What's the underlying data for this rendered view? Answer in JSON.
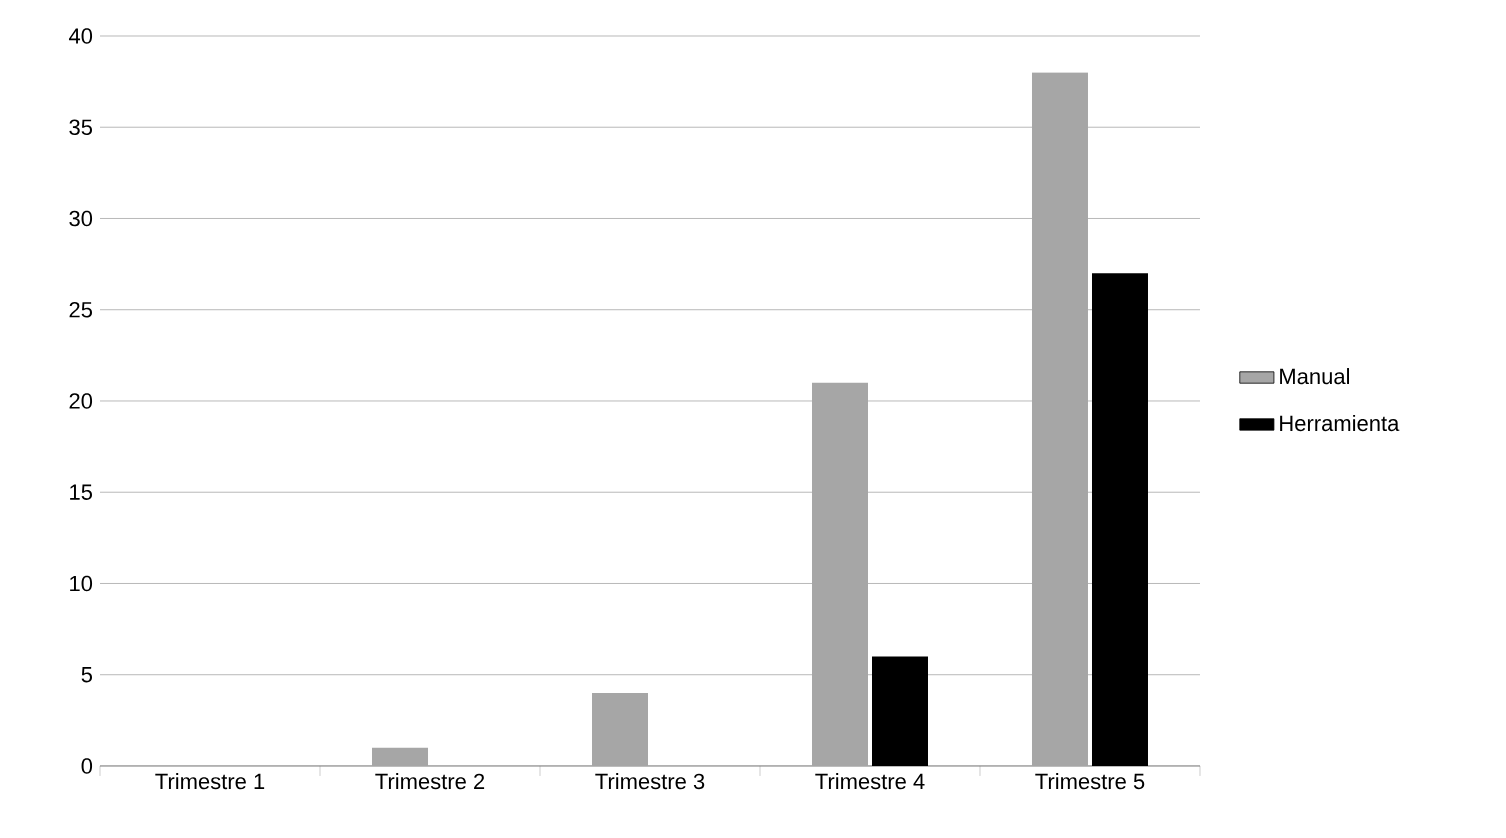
{
  "chart_data": {
    "type": "bar",
    "categories": [
      "Trimestre 1",
      "Trimestre 2",
      "Trimestre 3",
      "Trimestre 4",
      "Trimestre 5"
    ],
    "series": [
      {
        "name": "Manual",
        "color": "#a6a6a6",
        "values": [
          0,
          1,
          4,
          21,
          38
        ]
      },
      {
        "name": "Herramienta",
        "color": "#000000",
        "values": [
          0,
          0,
          0,
          6,
          27
        ]
      }
    ],
    "ylim": [
      0,
      40
    ],
    "yticks": [
      0,
      5,
      10,
      15,
      20,
      25,
      30,
      35,
      40
    ],
    "grid": "y",
    "legend": "right"
  }
}
